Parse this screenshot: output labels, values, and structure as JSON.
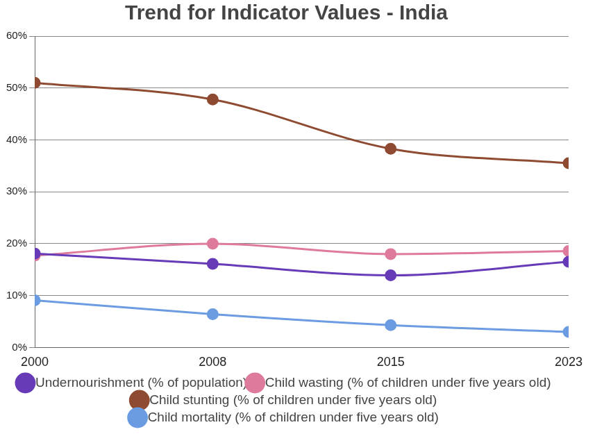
{
  "chart_data": {
    "type": "line",
    "title": "Trend for Indicator Values - India",
    "categories": [
      "2000",
      "2008",
      "2015",
      "2023"
    ],
    "series": [
      {
        "name": "Undernourishment (% of population)",
        "color": "#673ab7",
        "values": [
          18.1,
          16.1,
          13.9,
          16.5
        ]
      },
      {
        "name": "Child wasting (% of children under five years old)",
        "color": "#de7b9c",
        "values": [
          17.7,
          20.0,
          18.0,
          18.6
        ]
      },
      {
        "name": "Child stunting (% of children under five years old)",
        "color": "#8e4b32",
        "values": [
          51.0,
          47.8,
          38.3,
          35.5
        ]
      },
      {
        "name": "Child mortality (% of children under five years old)",
        "color": "#6b9be0",
        "values": [
          9.1,
          6.4,
          4.3,
          3.0
        ]
      }
    ],
    "ylim": [
      0,
      60
    ],
    "yticks": [
      {
        "value": 0,
        "label": "0%"
      },
      {
        "value": 10,
        "label": "10%"
      },
      {
        "value": 20,
        "label": "20%"
      },
      {
        "value": 30,
        "label": "30%"
      },
      {
        "value": 40,
        "label": "40%"
      },
      {
        "value": 50,
        "label": "50%"
      },
      {
        "value": 60,
        "label": "60%"
      }
    ],
    "grid": true,
    "legend": "bottom",
    "marker": "circle"
  }
}
